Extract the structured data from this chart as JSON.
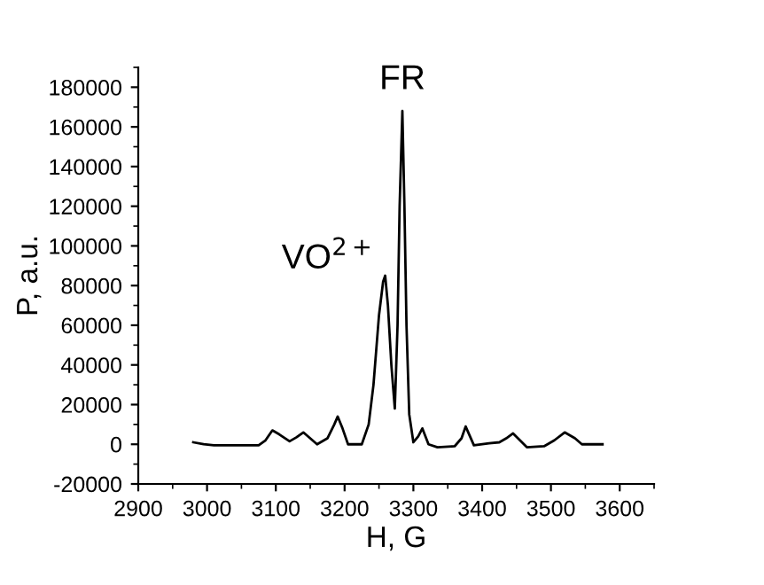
{
  "chart_data": {
    "type": "line",
    "xlabel": "H, G",
    "ylabel": "P, a.u.",
    "x": [
      2980,
      2995,
      3010,
      3040,
      3075,
      3085,
      3095,
      3105,
      3120,
      3130,
      3140,
      3150,
      3160,
      3175,
      3185,
      3190,
      3197,
      3205,
      3225,
      3235,
      3242,
      3250,
      3256,
      3259,
      3263,
      3268,
      3273,
      3277,
      3280,
      3284,
      3287,
      3290,
      3294,
      3300,
      3307,
      3313,
      3322,
      3335,
      3360,
      3370,
      3376,
      3388,
      3410,
      3425,
      3435,
      3445,
      3455,
      3465,
      3490,
      3505,
      3520,
      3535,
      3545,
      3575
    ],
    "series": [
      {
        "color": "#000000",
        "values": [
          1000,
          0,
          -500,
          -500,
          -500,
          2000,
          7000,
          5000,
          1500,
          3500,
          6000,
          3000,
          0,
          3000,
          10000,
          14000,
          8000,
          0,
          0,
          10000,
          30000,
          65000,
          82000,
          85000,
          70000,
          40000,
          18000,
          60000,
          120000,
          168000,
          120000,
          60000,
          15000,
          1000,
          4000,
          8000,
          0,
          -1500,
          -1000,
          3000,
          9000,
          -500,
          500,
          1000,
          3000,
          5500,
          2000,
          -1500,
          -1000,
          2000,
          6000,
          3000,
          0,
          0
        ]
      }
    ],
    "annotations": [
      {
        "text": "FR",
        "x": 3284,
        "y": 168000
      },
      {
        "text": "VO$^{2+}$",
        "x": 3259,
        "y": 85000
      }
    ],
    "xlim": [
      2900,
      3650
    ],
    "xticks": [
      2900,
      3000,
      3100,
      3200,
      3300,
      3400,
      3500,
      3600
    ],
    "ylim": [
      -20000,
      190000
    ],
    "yticks": [
      -20000,
      0,
      20000,
      40000,
      60000,
      80000,
      100000,
      120000,
      140000,
      160000,
      180000
    ],
    "grid": false,
    "legend": false,
    "marker": "none",
    "line_style": "solid"
  }
}
